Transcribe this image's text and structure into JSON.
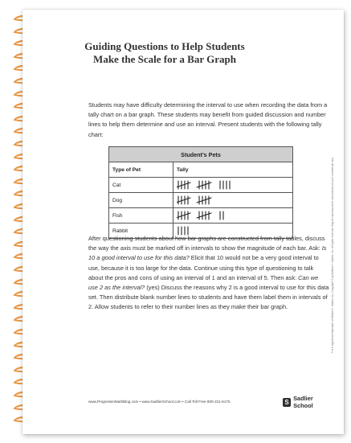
{
  "title": {
    "line1": "Guiding Questions to Help Students",
    "line2": "Make the Scale for a Bar Graph"
  },
  "intro": "Students may have difficulty determining the interval to use when recording the data from a tally chart on a bar graph. These students may benefit from guided discussion and number lines to help them determine and use an interval. Present students with the following tally chart:",
  "table": {
    "caption": "Student’s Pets",
    "col_type": "Type of Pet",
    "col_tally": "Tally",
    "rows": [
      {
        "pet": "Cat",
        "count": 14
      },
      {
        "pet": "Dog",
        "count": 10
      },
      {
        "pet": "Fish",
        "count": 12
      },
      {
        "pet": "Rabbit",
        "count": 4
      }
    ]
  },
  "body": {
    "p1": "After questioning students about how bar graphs are constructed from tally tables, discuss the way the axis must be marked off in intervals to show the magnitude of each bar. Ask: ",
    "q1": "Is 10 a good interval to use for this data?",
    "p2": " Elicit that 10 would not be a very good interval to use, because it is too large for the data. Continue using this type of questioning to talk about the pros and cons of using an interval of 1 and an interval of 5. Then ask: ",
    "q2": "Can we use 2 as the interval?",
    "p3": " (yes) Discuss the reasons why 2 is a good interval to use for this data set. Then distribute blank number lines to students and have them label them in intervals of 2. Allow students to refer to their number lines as they make their bar graph."
  },
  "footer": "www.ProgressinMathBlog.com  •  www.SadlierSchool.com  •  Call Toll Free 800-221-5175",
  "logo": {
    "mark": "S",
    "text": "Sadlier School"
  },
  "side_text": "® is a registered trademark of William H. Sadlier, Inc. Copyright © by William H. Sadlier, Inc. All rights reserved. May be reproduced for educational use (not commercial use).",
  "colors": {
    "ring": "#e8913a",
    "caption_bg": "#cfcfcf"
  }
}
